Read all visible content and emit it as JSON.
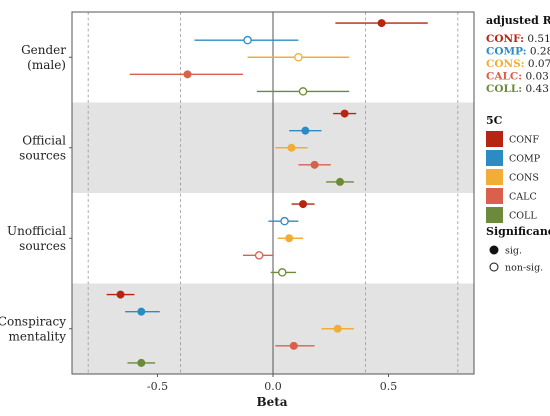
{
  "chart_data": {
    "type": "scatter",
    "title": "",
    "xlabel": "Beta",
    "ylabel": "",
    "xlim": [
      -0.87,
      0.87
    ],
    "x_ticks": [
      -0.5,
      0.0,
      0.5
    ],
    "x_tick_labels": [
      "-0.5",
      "0.0",
      "0.5"
    ],
    "reference_lines": [
      -0.8,
      -0.4,
      0.4,
      0.8
    ],
    "zero_line": 0,
    "categories": [
      "Gender\n(male)",
      "Official\nsources",
      "Unofficial\nsources",
      "Conspiracy\nmentality"
    ],
    "category_shading": [
      false,
      true,
      false,
      true
    ],
    "series": [
      {
        "name": "CONF",
        "color": "#b5250f",
        "values": [
          0.47,
          0.31,
          0.13,
          -0.66
        ],
        "ci_low": [
          0.27,
          0.26,
          0.08,
          -0.72
        ],
        "ci_high": [
          0.67,
          0.36,
          0.18,
          -0.6
        ],
        "significant": [
          true,
          true,
          true,
          true
        ]
      },
      {
        "name": "COMP",
        "color": "#2b8cc4",
        "values": [
          -0.11,
          0.14,
          0.05,
          -0.57
        ],
        "ci_low": [
          -0.34,
          0.07,
          -0.02,
          -0.64
        ],
        "ci_high": [
          0.11,
          0.21,
          0.11,
          -0.49
        ],
        "significant": [
          false,
          true,
          false,
          true
        ]
      },
      {
        "name": "CONS",
        "color": "#f0ae38",
        "values": [
          0.11,
          0.08,
          0.07,
          0.28
        ],
        "ci_low": [
          -0.11,
          0.01,
          0.02,
          0.21
        ],
        "ci_high": [
          0.33,
          0.15,
          0.13,
          0.35
        ],
        "significant": [
          false,
          true,
          true,
          true
        ]
      },
      {
        "name": "CALC",
        "color": "#d9604c",
        "values": [
          -0.37,
          0.18,
          -0.06,
          0.09
        ],
        "ci_low": [
          -0.62,
          0.11,
          -0.13,
          0.01
        ],
        "ci_high": [
          -0.13,
          0.25,
          0.0,
          0.18
        ],
        "significant": [
          true,
          true,
          false,
          true
        ]
      },
      {
        "name": "COLL",
        "color": "#6b8a3a",
        "values": [
          0.13,
          0.29,
          0.04,
          -0.57
        ],
        "ci_low": [
          -0.07,
          0.23,
          -0.01,
          -0.63
        ],
        "ci_high": [
          0.33,
          0.35,
          0.1,
          -0.51
        ],
        "significant": [
          false,
          true,
          false,
          true
        ]
      }
    ]
  },
  "r2_legend": {
    "title": "adjusted R²",
    "items": [
      {
        "name": "CONF",
        "value": "0.51",
        "color": "#b5250f"
      },
      {
        "name": "COMP",
        "value": "0.28",
        "color": "#2b8cc4"
      },
      {
        "name": "CONS",
        "value": "0.07",
        "color": "#f0ae38"
      },
      {
        "name": "CALC",
        "value": "0.03",
        "color": "#d9604c"
      },
      {
        "name": "COLL",
        "value": "0.43",
        "color": "#6b8a3a"
      }
    ]
  },
  "legend_5c": {
    "title": "5C",
    "items": [
      {
        "label": "CONF",
        "color": "#b5250f"
      },
      {
        "label": "COMP",
        "color": "#2b8cc4"
      },
      {
        "label": "CONS",
        "color": "#f0ae38"
      },
      {
        "label": "CALC",
        "color": "#d9604c"
      },
      {
        "label": "COLL",
        "color": "#6b8a3a"
      }
    ]
  },
  "legend_significance": {
    "title": "Significance",
    "items": [
      {
        "label": "sig.",
        "filled": true
      },
      {
        "label": "non-sig.",
        "filled": false
      }
    ]
  }
}
